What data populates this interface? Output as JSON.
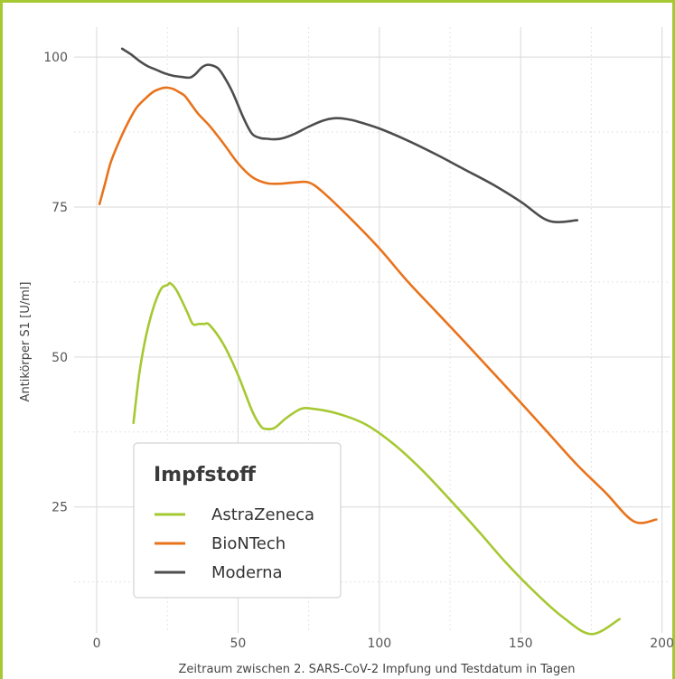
{
  "chart_data": {
    "type": "line",
    "title": "",
    "xlabel": "Zeitraum zwischen 2. SARS-CoV-2 Impfung und Testdatum in Tagen",
    "ylabel": "Antikörper S1 [U/ml]",
    "xlim": [
      -8,
      203
    ],
    "ylim": [
      4,
      105
    ],
    "xticks": [
      0,
      50,
      100,
      150,
      200
    ],
    "yticks": [
      25,
      50,
      75,
      100
    ],
    "grid": true,
    "legend": {
      "title": "Impfstoff",
      "position": "bottom-left",
      "entries": [
        "AstraZeneca",
        "BioNTech",
        "Moderna"
      ]
    },
    "series": [
      {
        "name": "AstraZeneca",
        "color": "#a6c832",
        "x": [
          13,
          15,
          17,
          19,
          21,
          23,
          25,
          26,
          28,
          30,
          32,
          34,
          36,
          38,
          40,
          45,
          50,
          55,
          58,
          60,
          63,
          67,
          72,
          76,
          85,
          95,
          105,
          115,
          125,
          135,
          145,
          155,
          165,
          175,
          185
        ],
        "y": [
          39,
          47,
          52.5,
          56.5,
          59.5,
          61.5,
          62,
          62.3,
          61.3,
          59.5,
          57.5,
          55.5,
          55.5,
          55.5,
          55.3,
          52,
          47,
          41,
          38.5,
          38,
          38.2,
          39.8,
          41.3,
          41.4,
          40.6,
          38.8,
          35.5,
          31.2,
          26.2,
          21,
          15.6,
          10.8,
          6.6,
          3.8,
          6.3
        ]
      },
      {
        "name": "BioNTech",
        "color": "#e8731c",
        "x": [
          1,
          3,
          5,
          8,
          11,
          14,
          17,
          20,
          23,
          25,
          27,
          29,
          31,
          33,
          36,
          40,
          45,
          50,
          55,
          60,
          65,
          70,
          75,
          80,
          90,
          100,
          110,
          120,
          130,
          140,
          150,
          160,
          170,
          180,
          190,
          198
        ],
        "y": [
          75.5,
          79,
          82.5,
          86,
          89,
          91.5,
          93,
          94.2,
          94.8,
          94.9,
          94.7,
          94.2,
          93.6,
          92.4,
          90.5,
          88.5,
          85.5,
          82.3,
          80,
          79,
          78.9,
          79.1,
          79.1,
          77.5,
          73,
          68.1,
          62.6,
          57.6,
          52.6,
          47.5,
          42.4,
          37.2,
          32,
          27.4,
          22.6,
          22.9
        ]
      },
      {
        "name": "Moderna",
        "color": "#4d4d4d",
        "x": [
          9,
          12,
          15,
          18,
          21,
          24,
          27,
          30,
          33,
          35,
          37,
          39,
          41,
          43,
          45,
          48,
          52,
          55,
          58,
          60,
          63,
          66,
          70,
          75,
          80,
          84,
          88,
          92,
          100,
          110,
          120,
          130,
          140,
          150,
          160,
          170
        ],
        "y": [
          101.4,
          100.5,
          99.4,
          98.5,
          97.9,
          97.3,
          96.9,
          96.7,
          96.6,
          97.2,
          98.2,
          98.7,
          98.6,
          98.1,
          96.8,
          94.2,
          89.8,
          87.2,
          86.5,
          86.4,
          86.3,
          86.5,
          87.2,
          88.4,
          89.4,
          89.8,
          89.7,
          89.3,
          88.1,
          86.1,
          83.8,
          81.3,
          78.8,
          75.9,
          72.7,
          72.8
        ]
      }
    ]
  }
}
